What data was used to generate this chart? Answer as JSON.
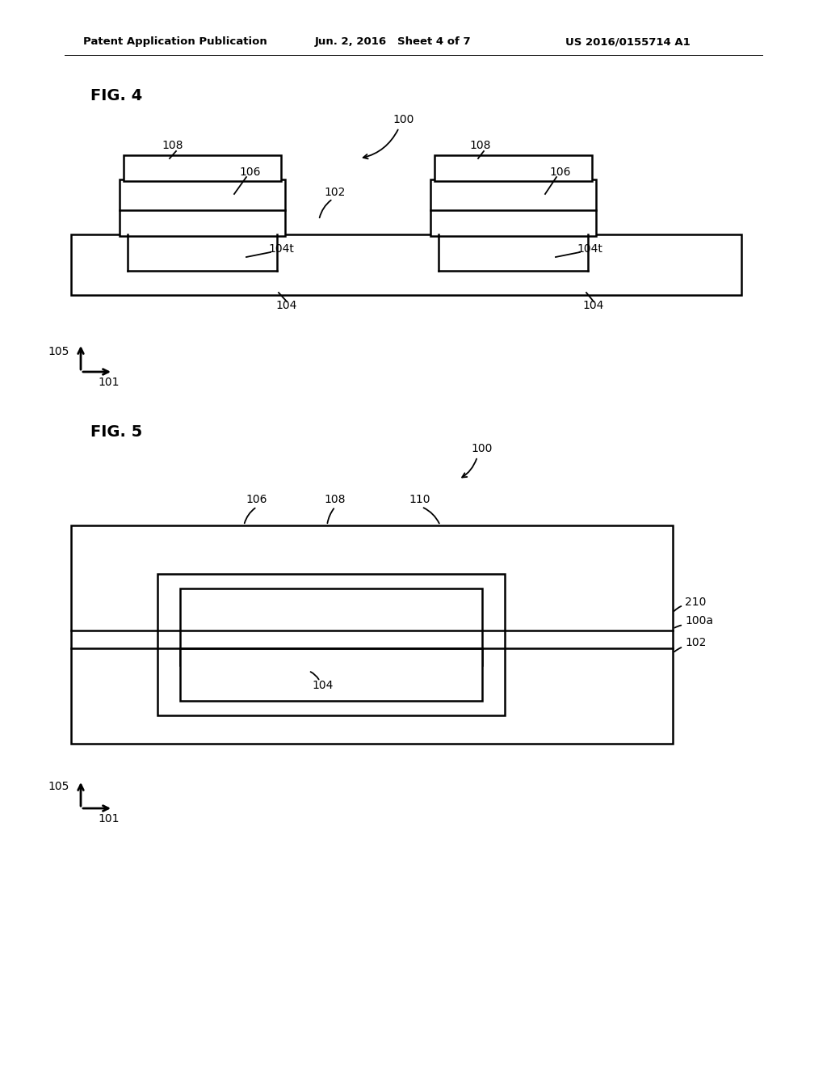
{
  "bg_color": "#ffffff",
  "header_left": "Patent Application Publication",
  "header_mid": "Jun. 2, 2016   Sheet 4 of 7",
  "header_right": "US 2016/0155714 A1",
  "fig4_label": "FIG. 4",
  "fig5_label": "FIG. 5",
  "lw_main": 1.8,
  "lw_thin": 1.3,
  "lw_header": 0.7,
  "font_header": 9.5,
  "font_label": 10,
  "font_fig": 14
}
